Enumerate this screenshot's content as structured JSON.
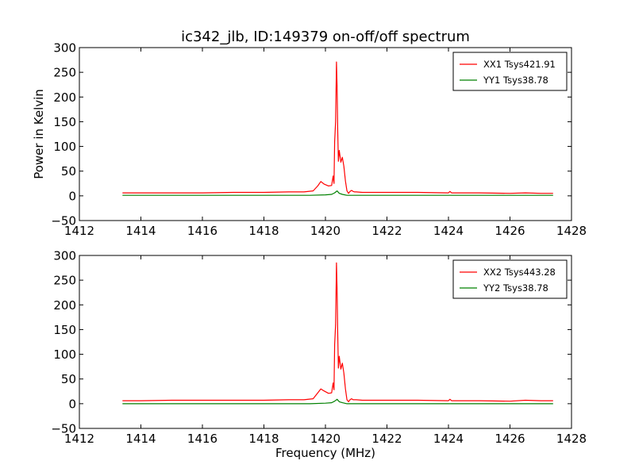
{
  "chart_data": [
    {
      "type": "line",
      "title": "ic342_jlb, ID:149379 on-off/off spectrum",
      "xlabel": "",
      "ylabel": "Power in Kelvin",
      "xlim": [
        1412,
        1428
      ],
      "ylim": [
        -50,
        300
      ],
      "xticks": [
        1412,
        1414,
        1416,
        1418,
        1420,
        1422,
        1424,
        1426,
        1428
      ],
      "yticks": [
        -50,
        0,
        50,
        100,
        150,
        200,
        250,
        300
      ],
      "legend_position": "top-right",
      "grid": false,
      "series": [
        {
          "name": "XX1 Tsys421.91",
          "color": "#ff0000",
          "x": [
            1413.4,
            1414.0,
            1415.0,
            1416.0,
            1417.0,
            1418.0,
            1418.8,
            1419.3,
            1419.6,
            1419.75,
            1419.85,
            1419.95,
            1420.1,
            1420.2,
            1420.25,
            1420.28,
            1420.3,
            1420.33,
            1420.36,
            1420.38,
            1420.4,
            1420.42,
            1420.45,
            1420.5,
            1420.55,
            1420.6,
            1420.65,
            1420.7,
            1420.75,
            1420.8,
            1420.85,
            1420.9,
            1420.95,
            1421.0,
            1421.2,
            1422.0,
            1423.0,
            1424.0,
            1424.05,
            1424.1,
            1425.0,
            1426.0,
            1426.5,
            1427.0,
            1427.4
          ],
          "y": [
            6,
            6,
            6,
            6,
            7,
            7,
            8,
            8,
            10,
            20,
            29,
            24,
            20,
            21,
            40,
            25,
            110,
            150,
            271,
            220,
            130,
            70,
            92,
            68,
            78,
            60,
            30,
            10,
            5,
            9,
            11,
            9,
            8,
            8,
            7,
            7,
            7,
            6,
            9,
            6,
            6,
            5,
            6,
            5,
            5
          ]
        },
        {
          "name": "YY1 Tsys38.78",
          "color": "#008000",
          "x": [
            1413.4,
            1416.0,
            1418.0,
            1419.5,
            1420.0,
            1420.2,
            1420.3,
            1420.38,
            1420.45,
            1420.55,
            1420.7,
            1421.0,
            1424.0,
            1427.4
          ],
          "y": [
            1,
            1,
            1,
            1,
            2,
            3,
            6,
            10,
            5,
            3,
            1,
            1,
            1,
            1
          ]
        }
      ]
    },
    {
      "type": "line",
      "title": "",
      "xlabel": "Frequency (MHz)",
      "ylabel": "",
      "xlim": [
        1412,
        1428
      ],
      "ylim": [
        -50,
        300
      ],
      "xticks": [
        1412,
        1414,
        1416,
        1418,
        1420,
        1422,
        1424,
        1426,
        1428
      ],
      "yticks": [
        -50,
        0,
        50,
        100,
        150,
        200,
        250,
        300
      ],
      "legend_position": "top-right",
      "grid": false,
      "series": [
        {
          "name": "XX2 Tsys443.28",
          "color": "#ff0000",
          "x": [
            1413.4,
            1414.0,
            1415.0,
            1416.0,
            1417.0,
            1418.0,
            1418.8,
            1419.3,
            1419.6,
            1419.75,
            1419.85,
            1419.95,
            1420.1,
            1420.2,
            1420.25,
            1420.28,
            1420.3,
            1420.33,
            1420.36,
            1420.38,
            1420.4,
            1420.42,
            1420.45,
            1420.5,
            1420.55,
            1420.6,
            1420.65,
            1420.7,
            1420.75,
            1420.8,
            1420.85,
            1420.9,
            1420.95,
            1421.0,
            1421.2,
            1422.0,
            1423.0,
            1424.0,
            1424.05,
            1424.1,
            1425.0,
            1426.0,
            1426.5,
            1427.0,
            1427.4
          ],
          "y": [
            6,
            6,
            7,
            7,
            7,
            7,
            8,
            8,
            10,
            22,
            30,
            26,
            21,
            22,
            42,
            28,
            120,
            160,
            285,
            230,
            140,
            72,
            96,
            70,
            82,
            62,
            30,
            8,
            4,
            8,
            10,
            8,
            8,
            8,
            7,
            7,
            7,
            6,
            9,
            6,
            6,
            5,
            7,
            6,
            6
          ]
        },
        {
          "name": "YY2 Tsys38.78",
          "color": "#008000",
          "x": [
            1413.4,
            1416.0,
            1418.0,
            1419.5,
            1420.0,
            1420.2,
            1420.3,
            1420.38,
            1420.45,
            1420.55,
            1420.7,
            1421.0,
            1424.0,
            1427.4
          ],
          "y": [
            0,
            0,
            0,
            0,
            1,
            2,
            5,
            9,
            4,
            2,
            0,
            0,
            0,
            0
          ]
        }
      ]
    }
  ]
}
